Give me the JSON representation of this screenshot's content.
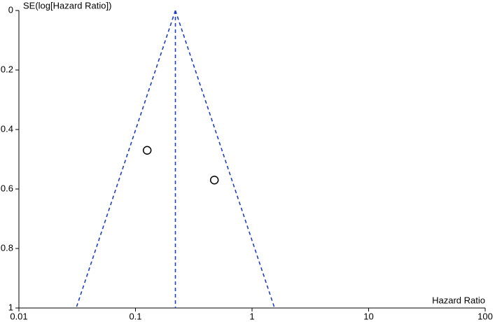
{
  "chart_data": {
    "type": "scatter",
    "x_label": "Hazard Ratio",
    "y_label": "SE(log[Hazard Ratio])",
    "xscale": "log",
    "xlim": [
      0.01,
      100
    ],
    "xticks": [
      0.01,
      0.1,
      1,
      10,
      100
    ],
    "ylim": [
      0,
      1
    ],
    "yticks": [
      0,
      0.2,
      0.4,
      0.6,
      0.8,
      1
    ],
    "y_inverted": true,
    "series": [
      {
        "x": [
          0.126,
          0.475
        ],
        "values": [
          0.47,
          0.57
        ],
        "color": "#000000"
      }
    ],
    "lines": [
      {
        "x": [
          0.22,
          0.22
        ],
        "y": [
          0,
          1
        ]
      },
      {
        "x": [
          0.22,
          0.031
        ],
        "y": [
          0,
          1
        ]
      },
      {
        "x": [
          0.22,
          1.56
        ],
        "y": [
          0,
          1
        ]
      }
    ],
    "line_color": "#1f3fbf"
  }
}
